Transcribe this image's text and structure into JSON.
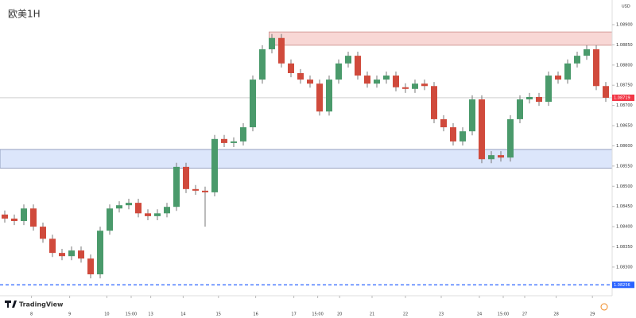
{
  "chart_data": {
    "type": "candlestick",
    "title": "欧美1H",
    "currency": "USD",
    "brand": "TradingView",
    "categories": [
      null,
      null,
      null,
      null,
      null,
      null,
      null,
      null,
      null,
      null,
      null,
      null,
      null,
      null,
      null,
      null,
      null,
      null,
      null,
      null,
      null,
      null,
      null,
      null,
      null,
      null,
      null,
      null,
      null,
      null,
      null,
      null,
      null,
      null,
      null,
      null,
      null,
      null,
      null,
      null,
      null,
      null,
      null,
      null,
      null,
      null,
      null,
      null,
      null,
      null,
      null,
      null,
      null,
      null,
      null,
      null,
      null,
      null,
      null,
      null,
      null,
      null,
      null,
      null
    ],
    "open": [
      1.0843,
      1.0842,
      1.08414,
      1.08445,
      1.084,
      1.0837,
      1.08335,
      1.08327,
      1.08341,
      1.08321,
      1.08282,
      1.0839,
      1.08445,
      1.08453,
      1.08459,
      1.08433,
      1.08426,
      1.08433,
      1.08449,
      1.08548,
      1.08493,
      1.08489,
      1.08485,
      1.08617,
      1.08607,
      1.08611,
      1.08646,
      1.08764,
      1.08839,
      1.08867,
      1.08804,
      1.0878,
      1.08764,
      1.08754,
      1.08685,
      1.08764,
      1.08804,
      1.08823,
      1.08774,
      1.08754,
      1.08764,
      1.08774,
      1.08745,
      1.08741,
      1.08754,
      1.08748,
      1.08666,
      1.08646,
      1.08611,
      1.08636,
      1.08715,
      1.08567,
      1.08577,
      1.08571,
      1.08666,
      1.08715,
      1.08721,
      1.08709,
      1.08774,
      1.08764,
      1.08804,
      1.08823,
      1.08839,
      1.08748
    ],
    "high": [
      1.0844,
      1.0843,
      1.08455,
      1.08455,
      1.0841,
      1.0838,
      1.08345,
      1.08351,
      1.08351,
      1.08331,
      1.084,
      1.08455,
      1.08463,
      1.08469,
      1.08469,
      1.08443,
      1.08443,
      1.08459,
      1.08558,
      1.08558,
      1.08503,
      1.08499,
      1.08627,
      1.08627,
      1.08621,
      1.08656,
      1.08774,
      1.08849,
      1.08877,
      1.08877,
      1.08814,
      1.0879,
      1.08774,
      1.08764,
      1.08774,
      1.08814,
      1.08833,
      1.08833,
      1.08784,
      1.08774,
      1.08784,
      1.08784,
      1.08755,
      1.08764,
      1.08764,
      1.08758,
      1.08676,
      1.08656,
      1.08646,
      1.08725,
      1.08725,
      1.08587,
      1.08587,
      1.08676,
      1.08725,
      1.08731,
      1.08731,
      1.08784,
      1.08784,
      1.08814,
      1.08833,
      1.08849,
      1.08849,
      1.08758
    ],
    "low": [
      1.0841,
      1.08404,
      1.08404,
      1.0839,
      1.0836,
      1.08325,
      1.08317,
      1.08317,
      1.08311,
      1.08272,
      1.08272,
      1.0838,
      1.08435,
      1.08443,
      1.08423,
      1.08416,
      1.08416,
      1.08423,
      1.08439,
      1.08483,
      1.08479,
      1.084,
      1.08475,
      1.08597,
      1.08597,
      1.08601,
      1.08636,
      1.08754,
      1.08829,
      1.08794,
      1.0877,
      1.08754,
      1.08744,
      1.08675,
      1.08675,
      1.08754,
      1.08794,
      1.08764,
      1.08744,
      1.08744,
      1.08754,
      1.08735,
      1.08731,
      1.08731,
      1.08738,
      1.08656,
      1.08636,
      1.08601,
      1.08601,
      1.08626,
      1.08557,
      1.08557,
      1.08561,
      1.08561,
      1.08656,
      1.08705,
      1.08699,
      1.08699,
      1.08754,
      1.08754,
      1.08794,
      1.08813,
      1.08738,
      1.08709
    ],
    "close": [
      1.0842,
      1.08414,
      1.08445,
      1.084,
      1.0837,
      1.08335,
      1.08327,
      1.08341,
      1.08321,
      1.08282,
      1.0839,
      1.08445,
      1.08453,
      1.08459,
      1.08433,
      1.08426,
      1.08433,
      1.08449,
      1.08548,
      1.08493,
      1.08489,
      1.08485,
      1.08617,
      1.08607,
      1.08611,
      1.08646,
      1.08764,
      1.08839,
      1.08867,
      1.08804,
      1.0878,
      1.08764,
      1.08754,
      1.08685,
      1.08764,
      1.08804,
      1.08823,
      1.08774,
      1.08754,
      1.08764,
      1.08774,
      1.08745,
      1.08741,
      1.08754,
      1.08748,
      1.08666,
      1.08646,
      1.08611,
      1.08636,
      1.08715,
      1.08567,
      1.08577,
      1.08571,
      1.08666,
      1.08715,
      1.08721,
      1.08709,
      1.08774,
      1.08764,
      1.08804,
      1.08823,
      1.08839,
      1.08748,
      1.08719
    ],
    "up_color": "#4a9a6b",
    "down_color": "#d04a3c",
    "ylim": [
      1.08229,
      1.08961
    ],
    "yticks": [
      {
        "value": 1.089,
        "label": "1.08900"
      },
      {
        "value": 1.0885,
        "label": "1.08850"
      },
      {
        "value": 1.088,
        "label": "1.08800"
      },
      {
        "value": 1.0875,
        "label": "1.08750"
      },
      {
        "value": 1.087,
        "label": "1.08700"
      },
      {
        "value": 1.0865,
        "label": "1.08650"
      },
      {
        "value": 1.086,
        "label": "1.08600"
      },
      {
        "value": 1.0855,
        "label": "1.08550"
      },
      {
        "value": 1.085,
        "label": "1.08500"
      },
      {
        "value": 1.0845,
        "label": "1.08450"
      },
      {
        "value": 1.084,
        "label": "1.08400"
      },
      {
        "value": 1.0835,
        "label": "1.08350"
      },
      {
        "value": 1.083,
        "label": "1.08300"
      }
    ],
    "xticks": [
      {
        "value": 2.8,
        "label": "8"
      },
      {
        "value": 6.8,
        "label": "9"
      },
      {
        "value": 10.7,
        "label": "10"
      },
      {
        "value": 13.25,
        "label": "15:00"
      },
      {
        "value": 15.3,
        "label": "13"
      },
      {
        "value": 18.7,
        "label": "14"
      },
      {
        "value": 22.4,
        "label": "15"
      },
      {
        "value": 26.3,
        "label": "16"
      },
      {
        "value": 30.3,
        "label": "17"
      },
      {
        "value": 32.8,
        "label": "15:00"
      },
      {
        "value": 35.1,
        "label": "20"
      },
      {
        "value": 38.5,
        "label": "21"
      },
      {
        "value": 42,
        "label": "22"
      },
      {
        "value": 45.75,
        "label": "23"
      },
      {
        "value": 49.75,
        "label": "24"
      },
      {
        "value": 52.25,
        "label": "15:00"
      },
      {
        "value": 54.5,
        "label": "27"
      },
      {
        "value": 57.8,
        "label": "28"
      },
      {
        "value": 61.6,
        "label": "29"
      }
    ],
    "zones": [
      {
        "from": 1.08882,
        "to": 1.08849,
        "x_from": 27.7,
        "color": "#f8d7d5",
        "border": "#c98a86"
      },
      {
        "from": 1.08591,
        "to": 1.08545,
        "x_from": -0.5,
        "color": "#dce6fb",
        "border": "#7f8bb0"
      }
    ],
    "hlines": [
      {
        "value": 1.08719,
        "label": "1.08719",
        "color": "#f23645",
        "line": "#b0b0b0",
        "dash": false
      },
      {
        "value": 1.08256,
        "label": "1.08256",
        "color": "#2962ff",
        "line": "#2962ff",
        "dash": true
      }
    ]
  }
}
